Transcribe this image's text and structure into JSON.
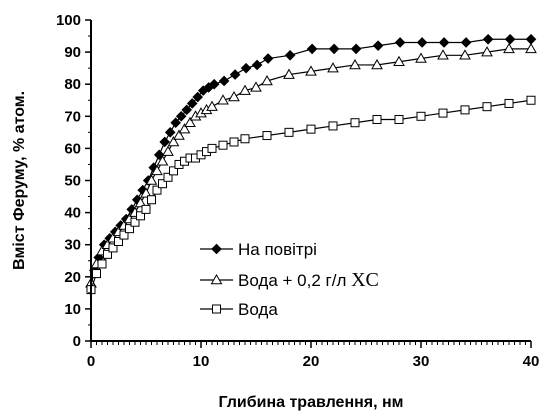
{
  "chart_data": {
    "type": "line",
    "xlabel": "Глибина травлення, нм",
    "ylabel": "Вміст Феруму, % атом.",
    "xlim": [
      0,
      40
    ],
    "ylim": [
      0,
      100
    ],
    "xticks": [
      0,
      10,
      20,
      30,
      40
    ],
    "yticks": [
      0,
      10,
      20,
      30,
      40,
      50,
      60,
      70,
      80,
      90,
      100
    ],
    "grid": false,
    "legend_position": "bottom-center",
    "series": [
      {
        "name": "На повітрі",
        "marker": "diamond",
        "x": [
          0,
          0.3,
          0.7,
          1.2,
          1.7,
          2.2,
          2.7,
          3.2,
          3.7,
          4.2,
          4.7,
          5.2,
          5.7,
          6.2,
          6.7,
          7.2,
          7.7,
          8.2,
          8.7,
          9.2,
          9.7,
          10.2,
          10.7,
          11.2,
          12.1,
          13.1,
          14.1,
          15.1,
          16.1,
          18.1,
          20.1,
          22.1,
          24.1,
          26.1,
          28.1,
          30.1,
          32.1,
          34.1,
          36.1,
          38.1,
          40
        ],
        "y": [
          17,
          22,
          26,
          30,
          32,
          34,
          36,
          38,
          41,
          44,
          47,
          50,
          54,
          58,
          62,
          65,
          68,
          70,
          72,
          74,
          76,
          78,
          79,
          80,
          81,
          83,
          85,
          86,
          88,
          89,
          91,
          91,
          91,
          92,
          93,
          93,
          93,
          93,
          94,
          94,
          94
        ]
      },
      {
        "name": "Вода + 0,2 г/л XC",
        "marker": "triangle",
        "x": [
          0,
          0.5,
          1,
          1.5,
          2,
          2.5,
          3,
          3.5,
          4,
          4.5,
          5,
          5.5,
          6,
          6.5,
          7,
          7.5,
          8,
          8.5,
          9,
          9.5,
          10,
          10.5,
          11,
          12,
          13,
          14,
          15,
          16,
          18,
          20,
          22,
          24,
          26,
          28,
          30,
          32,
          34,
          36,
          38,
          40
        ],
        "y": [
          18,
          24,
          28,
          30,
          32,
          34,
          36,
          38,
          40,
          43,
          46,
          50,
          53,
          56,
          59,
          62,
          64,
          66,
          68,
          70,
          71,
          72,
          73,
          75,
          76,
          78,
          79,
          81,
          83,
          84,
          85,
          86,
          86,
          87,
          88,
          89,
          89,
          90,
          91,
          91
        ]
      },
      {
        "name": "Вода",
        "marker": "square",
        "x": [
          0,
          0.5,
          1,
          1.5,
          2,
          2.5,
          3,
          3.5,
          4,
          4.5,
          5,
          5.5,
          6,
          6.5,
          7,
          7.5,
          8,
          8.5,
          9,
          9.5,
          10,
          10.5,
          11,
          12,
          13,
          14,
          16,
          18,
          20,
          22,
          24,
          26,
          28,
          30,
          32,
          34,
          36,
          38,
          40
        ],
        "y": [
          16,
          21,
          24,
          27,
          29,
          31,
          33,
          35,
          37,
          39,
          41,
          44,
          47,
          49,
          51,
          53,
          55,
          56,
          57,
          57,
          58,
          59,
          60,
          61,
          62,
          63,
          64,
          65,
          66,
          67,
          68,
          69,
          69,
          70,
          71,
          72,
          73,
          74,
          75
        ]
      }
    ]
  }
}
